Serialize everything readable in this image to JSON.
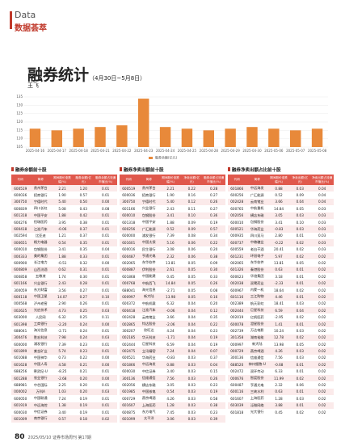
{
  "header": {
    "section_en": "Data",
    "section_cn": "数据荟萃"
  },
  "article": {
    "title": "融券统计",
    "date_range": "（4月30日~5月8日）",
    "author": "王飞"
  },
  "chart": {
    "type": "bar",
    "legend": "融券余额(亿元)",
    "color": "#e8893a",
    "categories": [
      "2025-04-16",
      "2025-04-17",
      "2025-04-18",
      "2025-04-21",
      "2025-04-22",
      "2025-04-23",
      "2025-04-24",
      "2025-04-25",
      "2025-04-28",
      "2025-04-29",
      "2025-04-30",
      "2025-05-06",
      "2025-05-07",
      "2025-05-08"
    ],
    "values": [
      116,
      115,
      116,
      117,
      118,
      134,
      117,
      116,
      115,
      116,
      117,
      116,
      115,
      116
    ],
    "ylim": [
      105,
      135
    ],
    "yticks": [
      105,
      110,
      115,
      120,
      125,
      130,
      135
    ]
  },
  "tables": [
    {
      "title": "融券余额前十股",
      "columns": [
        "代码",
        "简称",
        "期间股价涨跌幅(%)",
        "融券余额(亿元)",
        "融券余额占流通市值比(%)"
      ],
      "rows": [
        [
          "600519",
          "贵州茅台",
          "2.21",
          "1.20",
          "0.01"
        ],
        [
          "600036",
          "招商银行",
          "1.90",
          "0.57",
          "0.01"
        ],
        [
          "300750",
          "宁德时代",
          "5.40",
          "0.50",
          "0.00"
        ],
        [
          "600839",
          "四川长虹",
          "5.08",
          "0.43",
          "0.08"
        ],
        [
          "601318",
          "中国平安",
          "1.88",
          "0.42",
          "0.01"
        ],
        [
          "600276",
          "恒瑞医药",
          "3.95",
          "0.38",
          "0.01"
        ],
        [
          "600418",
          "江淮汽车",
          "-0.06",
          "0.37",
          "0.01"
        ],
        [
          "002594",
          "比亚迪",
          "1.21",
          "0.37",
          "0.01"
        ],
        [
          "000651",
          "格力电器",
          "0.54",
          "0.35",
          "0.01"
        ],
        [
          "600010",
          "包钢股份",
          "3.41",
          "0.35",
          "0.04"
        ],
        [
          "000333",
          "美的集团",
          "1.88",
          "0.33",
          "0.01"
        ],
        [
          "600900",
          "长江电力",
          "-0.51",
          "0.32",
          "0.00"
        ],
        [
          "600809",
          "山西汾酒",
          "0.62",
          "0.31",
          "0.01"
        ],
        [
          "000858",
          "五粮液",
          "1.74",
          "0.30",
          "0.01"
        ],
        [
          "601166",
          "兴业银行",
          "2.43",
          "0.28",
          "0.01"
        ],
        [
          "300059",
          "东方财富",
          "3.56",
          "0.27",
          "0.01"
        ],
        [
          "600118",
          "中国卫星",
          "14.07",
          "0.27",
          "0.10"
        ],
        [
          "000568",
          "泸州老窖",
          "2.90",
          "0.26",
          "0.01"
        ],
        [
          "002625",
          "光启技术",
          "4.73",
          "0.25",
          "0.03"
        ],
        [
          "603000",
          "人民网",
          "6.32",
          "0.25",
          "0.11"
        ],
        [
          "601398",
          "工商银行",
          "-2.20",
          "0.24",
          "0.00"
        ],
        [
          "688041",
          "海光信息",
          "-2.71",
          "0.24",
          "0.01"
        ],
        [
          "300476",
          "胜宏科技",
          "7.98",
          "0.24",
          "0.03"
        ],
        [
          "600000",
          "浦发银行",
          "7.39",
          "0.23",
          "0.01"
        ],
        [
          "601899",
          "紫金矿业",
          "5.74",
          "0.23",
          "0.01"
        ],
        [
          "601088",
          "中国神华",
          "0.73",
          "0.22",
          "0.00"
        ],
        [
          "601628",
          "中国人寿",
          "4.58",
          "0.21",
          "0.00"
        ],
        [
          "688256",
          "寒武纪-U",
          "-8.25",
          "0.21",
          "0.01"
        ],
        [
          "601288",
          "农业银行",
          "-2.68",
          "0.20",
          "0.00"
        ],
        [
          "688981",
          "中芯国际",
          "2.25",
          "0.20",
          "0.01"
        ],
        [
          "000002",
          "万科A",
          "1.03",
          "0.20",
          "0.03"
        ],
        [
          "600050",
          "中国联通",
          "7.24",
          "0.19",
          "0.01"
        ],
        [
          "601919",
          "中远海控",
          "1.38",
          "0.19",
          "0.01"
        ],
        [
          "600030",
          "中信证券",
          "3.40",
          "0.19",
          "0.01"
        ],
        [
          "601009",
          "南京银行",
          "0.57",
          "0.18",
          "0.02"
        ]
      ]
    },
    {
      "title": "融券净卖出额前十股",
      "columns": [
        "代码",
        "简称",
        "期间股价涨跌幅(%)",
        "净卖出额(亿元)",
        "融券余额占流通市值比(%)"
      ],
      "rows": [
        [
          "600519",
          "贵州茅台",
          "2.21",
          "0.22",
          "0.28"
        ],
        [
          "600036",
          "招商银行",
          "1.90",
          "0.16",
          "0.27"
        ],
        [
          "300750",
          "宁德时代",
          "5.40",
          "0.12",
          "0.26"
        ],
        [
          "601166",
          "兴业银行",
          "2.43",
          "0.11",
          "0.27"
        ],
        [
          "600010",
          "包钢股份",
          "3.41",
          "0.10",
          "0.36"
        ],
        [
          "601318",
          "中国平安",
          "1.88",
          "0.09",
          "0.19"
        ],
        [
          "600256",
          "广汇能源",
          "0.52",
          "0.09",
          "0.57"
        ],
        [
          "600000",
          "浦发银行",
          "7.39",
          "0.08",
          "0.34"
        ],
        [
          "601601",
          "中国太保",
          "5.16",
          "0.06",
          "0.22"
        ],
        [
          "600016",
          "民生银行",
          "3.08",
          "0.06",
          "0.20"
        ],
        [
          "600487",
          "亨通光电",
          "2.32",
          "0.06",
          "0.38"
        ],
        [
          "002065",
          "东华软件",
          "13.81",
          "0.05",
          "0.09"
        ],
        [
          "600887",
          "伊利股份",
          "2.61",
          "0.05",
          "0.30"
        ],
        [
          "601868",
          "中国能建",
          "0.45",
          "0.05",
          "0.33"
        ],
        [
          "000768",
          "中航西飞",
          "14.84",
          "0.05",
          "0.26"
        ],
        [
          "688041",
          "海光信息",
          "-2.71",
          "0.05",
          "0.08"
        ],
        [
          "000997",
          "新大陆",
          "13.98",
          "0.05",
          "0.16"
        ],
        [
          "600372",
          "中航机载",
          "6.32",
          "0.04",
          "0.20"
        ],
        [
          "600418",
          "江淮汽车",
          "-0.06",
          "0.04",
          "0.12"
        ],
        [
          "002428",
          "云南锗业",
          "3.66",
          "0.04",
          "0.35"
        ],
        [
          "002865",
          "钧达股份",
          "-2.06",
          "0.04",
          "0.22"
        ],
        [
          "300207",
          "欣旺达",
          "4.24",
          "0.04",
          "0.23"
        ],
        [
          "002185",
          "华天科技",
          "-1.71",
          "0.04",
          "0.19"
        ],
        [
          "002444",
          "巨星科技",
          "6.59",
          "0.04",
          "0.19"
        ],
        [
          "002475",
          "立讯精密",
          "7.24",
          "0.04",
          "0.07"
        ],
        [
          "600521",
          "华海药业",
          "-0.83",
          "0.03",
          "0.37"
        ],
        [
          "601866",
          "中远海发",
          "0.88",
          "0.03",
          "0.04"
        ],
        [
          "600030",
          "中信证券",
          "3.40",
          "0.03",
          "0.15"
        ],
        [
          "300136",
          "信维通信",
          "7.56",
          "0.03",
          "0.26"
        ],
        [
          "002056",
          "横店东磁",
          "3.05",
          "0.03",
          "0.23"
        ],
        [
          "601985",
          "中国核电",
          "0.54",
          "0.03",
          "0.19"
        ],
        [
          "000729",
          "燕京啤酒",
          "4.26",
          "0.03",
          "0.58"
        ],
        [
          "601607",
          "上海医药",
          "1.28",
          "0.03",
          "0.38"
        ],
        [
          "600875",
          "东方电气",
          "7.45",
          "0.03",
          "0.23"
        ],
        [
          "601099",
          "太平洋",
          "3.06",
          "0.03",
          "0.39"
        ]
      ]
    },
    {
      "title": "融券净卖出额占比前十股",
      "columns": [
        "代码",
        "简称",
        "期间股价涨跌幅(%)",
        "净卖出额(亿元)",
        "净卖出额占流通市值比(%)"
      ],
      "rows": [
        [
          "601866",
          "中远海发",
          "0.88",
          "0.03",
          "0.04"
        ],
        [
          "600256",
          "广汇能源",
          "0.52",
          "0.09",
          "0.04"
        ],
        [
          "002428",
          "云南锗业",
          "3.66",
          "0.04",
          "0.04"
        ],
        [
          "600765",
          "中航重机",
          "14.84",
          "0.05",
          "0.03"
        ],
        [
          "002056",
          "横店东磁",
          "3.05",
          "0.03",
          "0.03"
        ],
        [
          "600010",
          "包钢股份",
          "3.41",
          "0.10",
          "0.03"
        ],
        [
          "600521",
          "华海药业",
          "-0.83",
          "0.03",
          "0.03"
        ],
        [
          "000935",
          "四川双马",
          "2.80",
          "0.01",
          "0.03"
        ],
        [
          "600737",
          "中粮糖业",
          "-0.22",
          "0.02",
          "0.03"
        ],
        [
          "600559",
          "老白干酒",
          "20.41",
          "0.02",
          "0.03"
        ],
        [
          "601231",
          "环旭电子",
          "5.97",
          "0.02",
          "0.02"
        ],
        [
          "002065",
          "东华软件",
          "13.81",
          "0.05",
          "0.02"
        ],
        [
          "601326",
          "秦港股份",
          "0.63",
          "0.01",
          "0.02"
        ],
        [
          "600623",
          "华谊集团",
          "3.18",
          "0.01",
          "0.02"
        ],
        [
          "002038",
          "双鹭药业",
          "-2.33",
          "0.01",
          "0.02"
        ],
        [
          "600967",
          "内蒙一机",
          "18.64",
          "0.02",
          "0.02"
        ],
        [
          "601116",
          "三江购物",
          "4.46",
          "0.01",
          "0.02"
        ],
        [
          "002389",
          "航天彩虹",
          "18.41",
          "0.03",
          "0.02"
        ],
        [
          "002444",
          "巨星科技",
          "6.59",
          "0.04",
          "0.02"
        ],
        [
          "002019",
          "亿帆医药",
          "-2.95",
          "0.02",
          "0.02"
        ],
        [
          "600078",
          "澄星股份",
          "1.41",
          "0.01",
          "0.02"
        ],
        [
          "002739",
          "万达电影",
          "10.24",
          "0.03",
          "0.02"
        ],
        [
          "301358",
          "湖南裕能",
          "12.78",
          "0.02",
          "0.02"
        ],
        [
          "000997",
          "新大陆",
          "13.98",
          "0.05",
          "0.02"
        ],
        [
          "000729",
          "燕京啤酒",
          "4.26",
          "0.03",
          "0.02"
        ],
        [
          "300136",
          "信维通信",
          "7.56",
          "0.03",
          "0.02"
        ],
        [
          "688520",
          "神州细胞-U",
          "-0.68",
          "0.01",
          "0.02"
        ],
        [
          "002472",
          "双环传动",
          "6.33",
          "0.01",
          "0.02"
        ],
        [
          "000676",
          "智度股份",
          "11.99",
          "0.02",
          "0.02"
        ],
        [
          "600487",
          "亨通光电",
          "2.32",
          "0.06",
          "0.02"
        ],
        [
          "600116",
          "三峡水利",
          "0.63",
          "0.01",
          "0.02"
        ],
        [
          "601607",
          "上海医药",
          "1.28",
          "0.03",
          "0.02"
        ],
        [
          "603039",
          "泛微网络",
          "3.88",
          "0.01",
          "0.02"
        ],
        [
          "601818",
          "光大银行",
          "0.45",
          "0.02",
          "0.02"
        ]
      ]
    }
  ],
  "footer": {
    "page": "80",
    "text": "2025/05/10 证券市场周刊 第17期"
  }
}
